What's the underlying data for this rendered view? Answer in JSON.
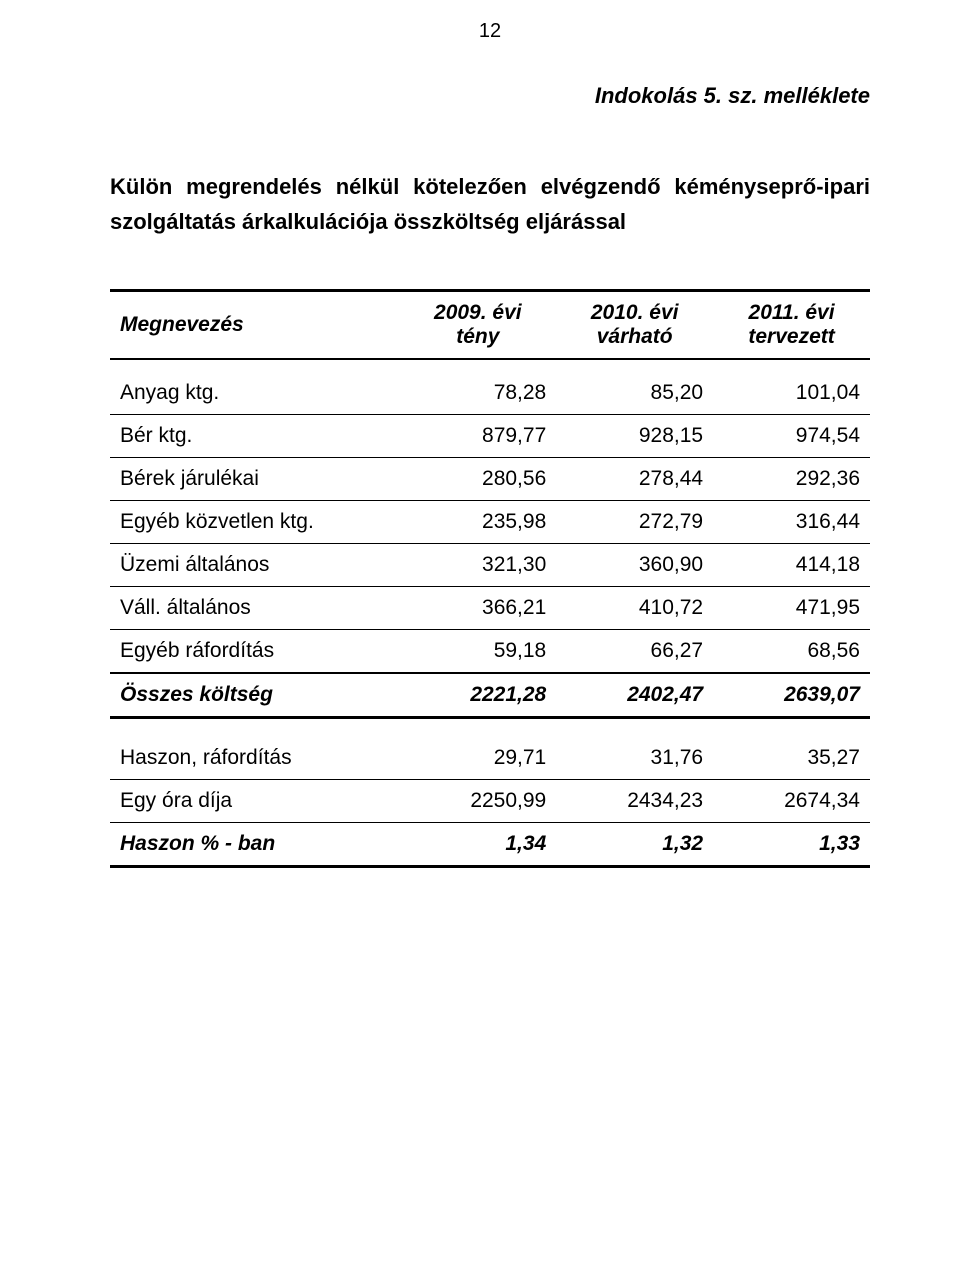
{
  "page_number": "12",
  "doc_title": "Indokolás 5. sz. melléklete",
  "intro_text": "Külön megrendelés nélkül kötelezően elvégzendő kéményseprő-ipari szolgáltatás árkalkulációja összköltség eljárással",
  "table": {
    "type": "table",
    "background_color": "#ffffff",
    "border_color": "#000000",
    "font_family": "Arial",
    "header_fontstyle": "bold italic",
    "cell_fontsize": 21,
    "columns": [
      {
        "label": "Megnevezés",
        "align": "left"
      },
      {
        "label_line1": "2009. évi",
        "label_line2": "tény",
        "align": "right"
      },
      {
        "label_line1": "2010. évi",
        "label_line2": "várható",
        "align": "right"
      },
      {
        "label_line1": "2011. évi",
        "label_line2": "tervezett",
        "align": "right"
      }
    ],
    "rows": [
      {
        "label": "Anyag ktg.",
        "v": [
          "78,28",
          "85,20",
          "101,04"
        ]
      },
      {
        "label": "Bér ktg.",
        "v": [
          "879,77",
          "928,15",
          "974,54"
        ]
      },
      {
        "label": "Bérek járulékai",
        "v": [
          "280,56",
          "278,44",
          "292,36"
        ]
      },
      {
        "label": "Egyéb közvetlen ktg.",
        "v": [
          "235,98",
          "272,79",
          "316,44"
        ]
      },
      {
        "label": "Üzemi általános",
        "v": [
          "321,30",
          "360,90",
          "414,18"
        ]
      },
      {
        "label": "Váll.  általános",
        "v": [
          "366,21",
          "410,72",
          "471,95"
        ]
      },
      {
        "label": "Egyéb ráfordítás",
        "v": [
          "59,18",
          "66,27",
          "68,56"
        ]
      }
    ],
    "total_row": {
      "label": "Összes költség",
      "v": [
        "2221,28",
        "2402,47",
        "2639,07"
      ]
    },
    "lower_rows": [
      {
        "label": "Haszon, ráfordítás",
        "v": [
          "29,71",
          "31,76",
          "35,27"
        ]
      },
      {
        "label": "Egy óra díja",
        "v": [
          "2250,99",
          "2434,23",
          "2674,34"
        ]
      }
    ],
    "last_row": {
      "label": "Haszon % - ban",
      "v": [
        "1,34",
        "1,32",
        "1,33"
      ]
    }
  }
}
